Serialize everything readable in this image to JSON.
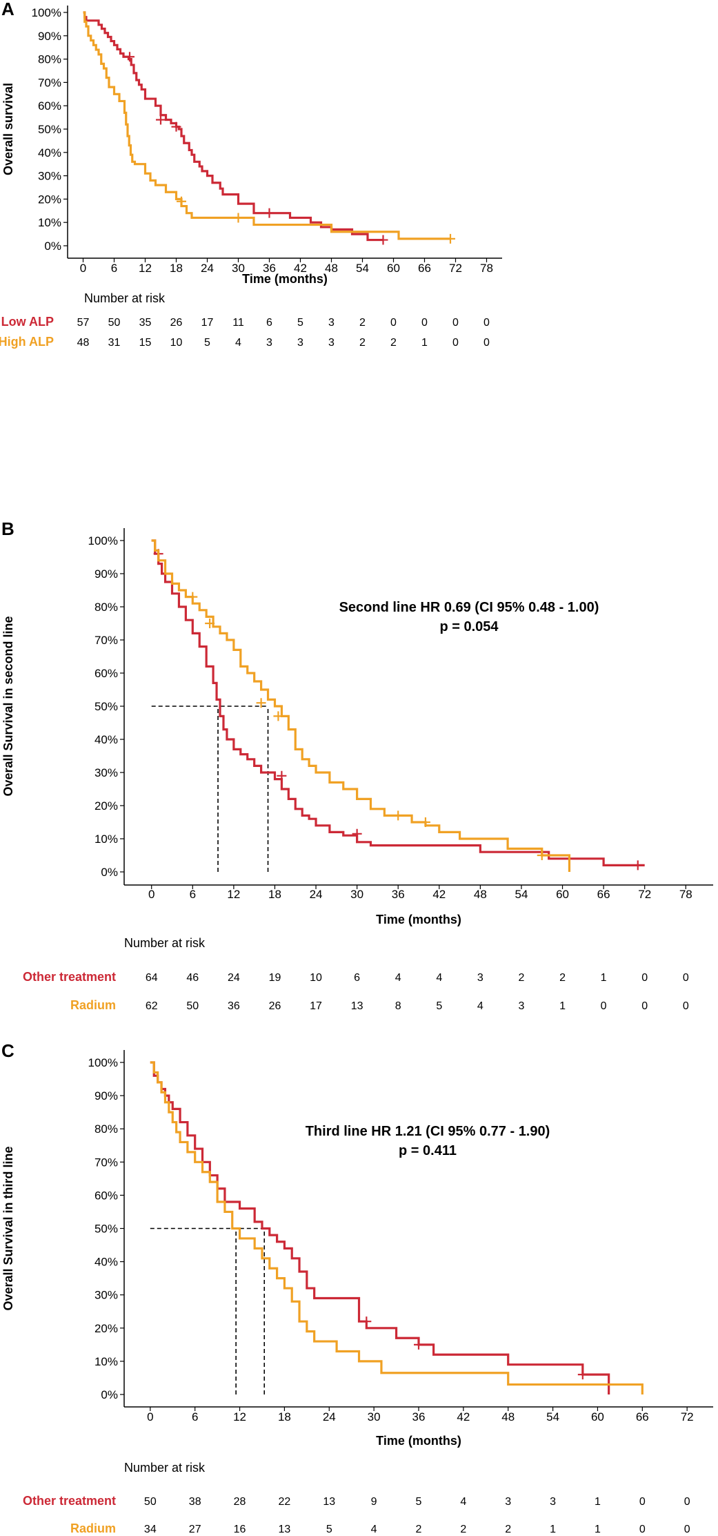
{
  "colors": {
    "low_alp": "#cc2936",
    "high_alp": "#f0a124",
    "other": "#cc2936",
    "radium": "#f0a124"
  },
  "chart_data": [
    {
      "panel": "A",
      "type": "line",
      "subtype": "kaplan-meier",
      "xlabel": "Time (months)",
      "ylabel": "Overall survival",
      "xticks": [
        0,
        6,
        12,
        18,
        24,
        30,
        36,
        42,
        48,
        54,
        60,
        66,
        72,
        78
      ],
      "yticks": [
        "0%",
        "10%",
        "20%",
        "30%",
        "40%",
        "50%",
        "60%",
        "70%",
        "80%",
        "90%",
        "100%"
      ],
      "xlim": [
        -3,
        81
      ],
      "ylim": [
        0,
        1
      ],
      "annotation": [],
      "median_lines": [],
      "series": [
        {
          "name": "Low ALP",
          "color": "#cc2936",
          "x": [
            0,
            0.3,
            0.6,
            0.9,
            1.5,
            3,
            3.6,
            4.2,
            4.8,
            5.4,
            6,
            6.6,
            7.2,
            7.8,
            8.4,
            8.8,
            9.3,
            9.8,
            10.3,
            10.8,
            11.3,
            12,
            14,
            15,
            16,
            17,
            18,
            18.5,
            19,
            19.5,
            20,
            20.5,
            21,
            21.5,
            22,
            22.5,
            23,
            24,
            25,
            26,
            26.5,
            27,
            28,
            30,
            33,
            36,
            38,
            40,
            42,
            44,
            46,
            48,
            50,
            52,
            54,
            55,
            58
          ],
          "y": [
            1,
            0.98,
            0.965,
            0.965,
            0.965,
            0.947,
            0.93,
            0.912,
            0.895,
            0.877,
            0.86,
            0.842,
            0.824,
            0.81,
            0.81,
            0.8,
            0.775,
            0.74,
            0.71,
            0.69,
            0.67,
            0.63,
            0.6,
            0.56,
            0.54,
            0.525,
            0.51,
            0.5,
            0.47,
            0.44,
            0.44,
            0.41,
            0.39,
            0.36,
            0.36,
            0.34,
            0.32,
            0.3,
            0.27,
            0.27,
            0.245,
            0.22,
            0.22,
            0.18,
            0.14,
            0.14,
            0.14,
            0.12,
            0.12,
            0.1,
            0.08,
            0.07,
            0.07,
            0.05,
            0.05,
            0.025,
            0.025
          ],
          "censored": [
            [
              9,
              0.81
            ],
            [
              15,
              0.54
            ],
            [
              18,
              0.51
            ],
            [
              36,
              0.14
            ],
            [
              58,
              0.025
            ]
          ]
        },
        {
          "name": "High ALP",
          "color": "#f0a124",
          "x": [
            0,
            0.3,
            0.6,
            1,
            1.5,
            2,
            2.5,
            3,
            3.5,
            4,
            4.5,
            5,
            6,
            7,
            8,
            8.3,
            8.6,
            8.9,
            9.2,
            9.5,
            10,
            12,
            13,
            14,
            16,
            18,
            19,
            20,
            21,
            24,
            30,
            33,
            48,
            61,
            71
          ],
          "y": [
            1,
            0.96,
            0.94,
            0.9,
            0.88,
            0.86,
            0.84,
            0.82,
            0.78,
            0.76,
            0.72,
            0.68,
            0.65,
            0.62,
            0.57,
            0.52,
            0.47,
            0.43,
            0.39,
            0.36,
            0.35,
            0.31,
            0.28,
            0.26,
            0.23,
            0.2,
            0.17,
            0.14,
            0.12,
            0.12,
            0.12,
            0.09,
            0.06,
            0.03,
            0.03
          ],
          "censored": [
            [
              19,
              0.19
            ],
            [
              30,
              0.12
            ],
            [
              71,
              0.03
            ]
          ]
        }
      ],
      "risk_table": {
        "title": "Number at risk",
        "rows": [
          {
            "label": "Low ALP",
            "color": "#cc2936",
            "values": [
              57,
              50,
              35,
              26,
              17,
              11,
              6,
              5,
              3,
              2,
              0,
              0,
              0,
              0
            ]
          },
          {
            "label": "High ALP",
            "color": "#f0a124",
            "values": [
              48,
              31,
              15,
              10,
              5,
              4,
              3,
              3,
              3,
              2,
              2,
              1,
              0,
              0
            ]
          }
        ]
      }
    },
    {
      "panel": "B",
      "type": "line",
      "subtype": "kaplan-meier",
      "xlabel": "Time (months)",
      "ylabel": "Overall Survival in second line",
      "xticks": [
        0,
        6,
        12,
        18,
        24,
        30,
        36,
        42,
        48,
        54,
        60,
        66,
        72,
        78
      ],
      "yticks": [
        "0%",
        "10%",
        "20%",
        "30%",
        "40%",
        "50%",
        "60%",
        "70%",
        "80%",
        "90%",
        "100%"
      ],
      "xlim": [
        -4,
        82
      ],
      "ylim": [
        0,
        1
      ],
      "annotation": [
        "Second line HR 0.69 (CI 95% 0.48 -  1.00)",
        "p = 0.054"
      ],
      "median_lines": [
        9.7,
        17
      ],
      "series": [
        {
          "name": "Other treatment",
          "color": "#cc2936",
          "x": [
            0,
            0.5,
            1,
            1.5,
            2,
            3,
            4,
            5,
            6,
            7,
            8,
            9,
            9.5,
            10,
            10.5,
            11,
            12,
            13,
            14,
            15,
            16,
            17,
            18,
            19,
            20,
            21,
            22,
            23,
            24,
            26,
            28,
            30,
            32,
            38,
            48,
            58,
            66,
            72
          ],
          "y": [
            1,
            0.96,
            0.93,
            0.9,
            0.875,
            0.84,
            0.8,
            0.76,
            0.72,
            0.68,
            0.62,
            0.57,
            0.52,
            0.47,
            0.43,
            0.4,
            0.37,
            0.355,
            0.34,
            0.32,
            0.3,
            0.3,
            0.28,
            0.25,
            0.22,
            0.19,
            0.17,
            0.16,
            0.14,
            0.12,
            0.11,
            0.09,
            0.08,
            0.08,
            0.06,
            0.04,
            0.02,
            0.02
          ],
          "censored": [
            [
              1,
              0.96
            ],
            [
              19,
              0.29
            ],
            [
              30,
              0.115
            ],
            [
              71,
              0.02
            ]
          ]
        },
        {
          "name": "Radium",
          "color": "#f0a124",
          "x": [
            0,
            0.5,
            1,
            2,
            3,
            4,
            5,
            6,
            7,
            8,
            9,
            10,
            11,
            12,
            13,
            14,
            15,
            16,
            17,
            18,
            19,
            20,
            21,
            22,
            23,
            24,
            26,
            28,
            30,
            32,
            34,
            36,
            38,
            40,
            42,
            45,
            48,
            52,
            57,
            61
          ],
          "y": [
            1,
            0.97,
            0.94,
            0.9,
            0.87,
            0.85,
            0.83,
            0.81,
            0.79,
            0.77,
            0.74,
            0.72,
            0.7,
            0.67,
            0.62,
            0.6,
            0.575,
            0.55,
            0.52,
            0.5,
            0.47,
            0.43,
            0.37,
            0.34,
            0.32,
            0.3,
            0.27,
            0.25,
            0.22,
            0.19,
            0.17,
            0.17,
            0.15,
            0.14,
            0.12,
            0.1,
            0.1,
            0.07,
            0.05,
            0.0
          ],
          "censored": [
            [
              6,
              0.83
            ],
            [
              8.5,
              0.75
            ],
            [
              16,
              0.51
            ],
            [
              18.5,
              0.47
            ],
            [
              36,
              0.17
            ],
            [
              40,
              0.15
            ],
            [
              57,
              0.05
            ]
          ]
        }
      ],
      "risk_table": {
        "title": "Number at risk",
        "rows": [
          {
            "label": "Other treatment",
            "color": "#cc2936",
            "values": [
              64,
              46,
              24,
              19,
              10,
              6,
              4,
              4,
              3,
              2,
              2,
              1,
              0,
              0
            ]
          },
          {
            "label": "Radium",
            "color": "#f0a124",
            "values": [
              62,
              50,
              36,
              26,
              17,
              13,
              8,
              5,
              4,
              3,
              1,
              0,
              0,
              0
            ]
          }
        ]
      }
    },
    {
      "panel": "C",
      "type": "line",
      "subtype": "kaplan-meier",
      "xlabel": "Time (months)",
      "ylabel": "Overall Survival in third line",
      "xticks": [
        0,
        6,
        12,
        18,
        24,
        30,
        36,
        42,
        48,
        54,
        60,
        66,
        72
      ],
      "yticks": [
        "0%",
        "10%",
        "20%",
        "30%",
        "40%",
        "50%",
        "60%",
        "70%",
        "80%",
        "90%",
        "100%"
      ],
      "xlim": [
        -3.5,
        75.5
      ],
      "ylim": [
        0,
        1
      ],
      "annotation": [
        "Third line HR 1.21 (CI 95% 0.77 -  1.90)",
        "p = 0.411"
      ],
      "median_lines": [
        11.5,
        15.3
      ],
      "series": [
        {
          "name": "Other treatment",
          "color": "#cc2936",
          "x": [
            0,
            0.5,
            1,
            1.5,
            2,
            2.5,
            3,
            4,
            5,
            6,
            7,
            8,
            9,
            10,
            12,
            14,
            15,
            16,
            17,
            18,
            19,
            20,
            21,
            22,
            24,
            28,
            29,
            33,
            36,
            38,
            48,
            54,
            58,
            61.5
          ],
          "y": [
            1,
            0.96,
            0.94,
            0.92,
            0.9,
            0.88,
            0.86,
            0.82,
            0.78,
            0.74,
            0.7,
            0.66,
            0.62,
            0.58,
            0.56,
            0.52,
            0.5,
            0.48,
            0.46,
            0.44,
            0.41,
            0.37,
            0.32,
            0.29,
            0.29,
            0.22,
            0.2,
            0.17,
            0.15,
            0.12,
            0.09,
            0.09,
            0.06,
            0.0
          ],
          "censored": [
            [
              29,
              0.22
            ],
            [
              36,
              0.15
            ],
            [
              58,
              0.06
            ]
          ]
        },
        {
          "name": "Radium",
          "color": "#f0a124",
          "x": [
            0,
            0.5,
            1,
            1.5,
            2,
            2.5,
            3,
            3.5,
            4,
            5,
            6,
            7,
            8,
            9,
            10,
            11,
            12,
            14,
            15,
            16,
            17,
            18,
            19,
            20,
            21,
            22,
            25,
            28,
            31,
            32,
            36,
            48,
            66
          ],
          "y": [
            1,
            0.97,
            0.94,
            0.91,
            0.88,
            0.85,
            0.82,
            0.79,
            0.76,
            0.73,
            0.7,
            0.67,
            0.64,
            0.58,
            0.55,
            0.5,
            0.47,
            0.44,
            0.41,
            0.38,
            0.35,
            0.32,
            0.28,
            0.22,
            0.19,
            0.16,
            0.13,
            0.1,
            0.065,
            0.065,
            0.065,
            0.03,
            0.0
          ],
          "censored": []
        }
      ],
      "risk_table": {
        "title": "Number at risk",
        "rows": [
          {
            "label": "Other treatment",
            "color": "#cc2936",
            "values": [
              50,
              38,
              28,
              22,
              13,
              9,
              5,
              4,
              3,
              3,
              1,
              0,
              0
            ]
          },
          {
            "label": "Radium",
            "color": "#f0a124",
            "values": [
              34,
              27,
              16,
              13,
              5,
              4,
              2,
              2,
              2,
              1,
              1,
              0,
              0
            ]
          }
        ]
      }
    }
  ]
}
